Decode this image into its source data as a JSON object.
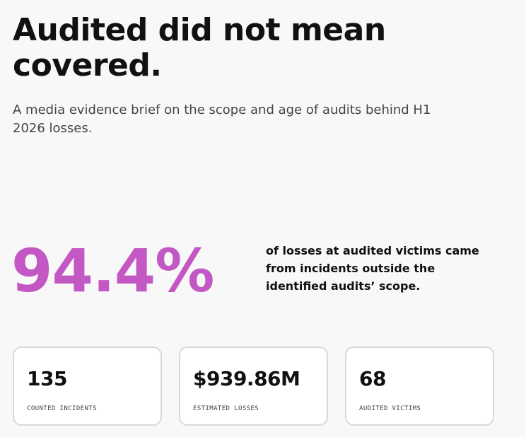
{
  "headline": "Audited did not mean covered.",
  "subhead": "A media evidence brief on the scope and age of audits behind H1 2026 losses.",
  "big_stat": {
    "value": "94.4%",
    "caption": "of losses at audited victims came from incidents outside the identified audits’ scope.",
    "color": "#c357c3"
  },
  "cards": [
    {
      "value": "135",
      "label": "COUNTED INCIDENTS"
    },
    {
      "value": "$939.86M",
      "label": "ESTIMATED LOSSES"
    },
    {
      "value": "68",
      "label": "AUDITED VICTIMS"
    }
  ]
}
